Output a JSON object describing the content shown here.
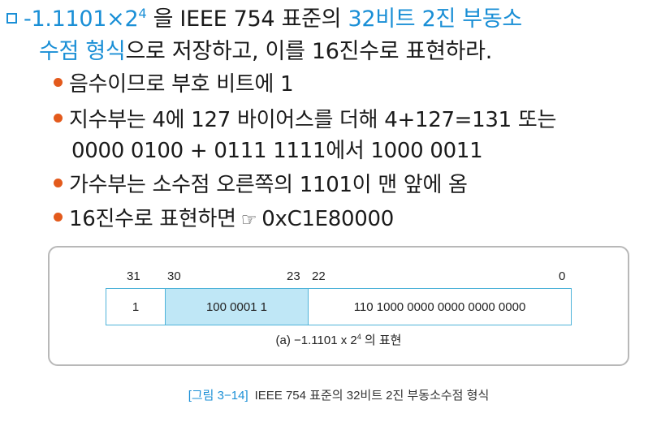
{
  "question": {
    "line1_pre": "-1.1101×2",
    "line1_exp": "4",
    "line1_mid": " 을 IEEE 754 표준의 ",
    "line1_highlight": "32비트 2진 부동소",
    "line2_highlight": "수점 형식",
    "line2_post": "으로 저장하고, 이를 16진수로 표현하라."
  },
  "bullets": {
    "b1": "음수이므로 부호 비트에 1",
    "b2_line1": "지수부는 4에 127 바이어스를 더해 4+127=131 또는",
    "b2_line2": "0000 0100 + 0111 1111에서 1000 0011",
    "b3": "가수부는 소수점 오른쪽의 1101이 맨 앞에 옴",
    "b4_pre": "16진수로 표현하면",
    "b4_pointer": "☞",
    "b4_post": "0xC1E80000"
  },
  "figure": {
    "bit_labels": [
      "31",
      "30",
      "23",
      "22",
      "0"
    ],
    "sign": "1",
    "exponent": "100 0001 1",
    "mantissa": "110 1000 0000 0000 0000 0000",
    "sub_caption_pre": "(a) −1.1101 x 2",
    "sub_caption_exp": "4",
    "sub_caption_post": " 의 표현",
    "caption_label": "[그림 3−14]",
    "caption_text": "IEEE 754 표준의 32비트 2진 부동소수점 형식"
  },
  "colors": {
    "accent_blue": "#1a8fd6",
    "bullet_orange": "#e35a1c",
    "exponent_fill": "#bfe7f6",
    "border_cyan": "#4fb3d9"
  }
}
